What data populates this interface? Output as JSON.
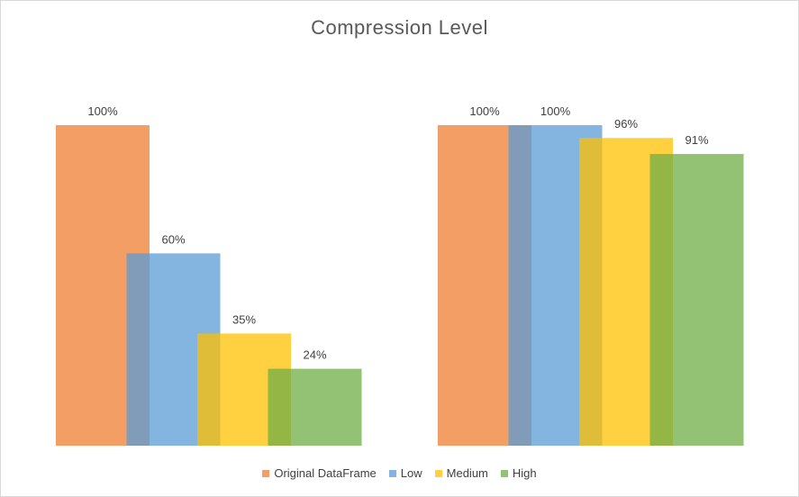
{
  "chart_data": {
    "type": "bar",
    "title": "Compression Level",
    "xlabel": "",
    "ylabel": "",
    "ylim": [
      0,
      100
    ],
    "grid": false,
    "legend_position": "bottom",
    "overlapping_bars": true,
    "groups": [
      {
        "values": [
          {
            "series": "Original DataFrame",
            "value": 100,
            "label": "100%"
          },
          {
            "series": "Low",
            "value": 60,
            "label": "60%"
          },
          {
            "series": "Medium",
            "value": 35,
            "label": "35%"
          },
          {
            "series": "High",
            "value": 24,
            "label": "24%"
          }
        ]
      },
      {
        "values": [
          {
            "series": "Original DataFrame",
            "value": 100,
            "label": "100%"
          },
          {
            "series": "Low",
            "value": 100,
            "label": "100%"
          },
          {
            "series": "Medium",
            "value": 96,
            "label": "96%"
          },
          {
            "series": "High",
            "value": 91,
            "label": "91%"
          }
        ]
      }
    ],
    "series": [
      {
        "name": "Original DataFrame",
        "color": "#ED7D31"
      },
      {
        "name": "Low",
        "color": "#5B9BD5"
      },
      {
        "name": "Medium",
        "color": "#FFC000"
      },
      {
        "name": "High",
        "color": "#70AD47"
      }
    ]
  }
}
